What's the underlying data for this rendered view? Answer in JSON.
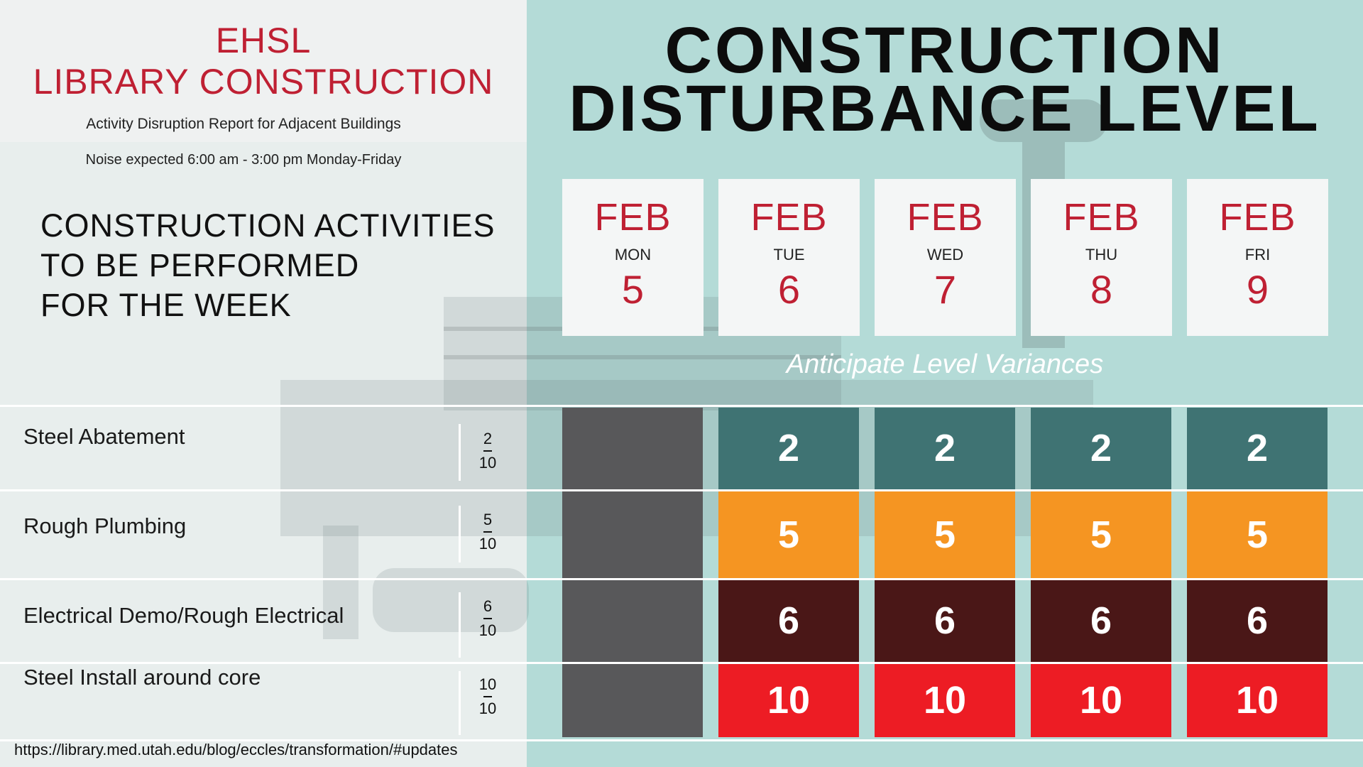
{
  "header": {
    "ehsl_line1": "EHSL",
    "ehsl_line2": "LIBRARY CONSTRUCTION",
    "report_subtitle": "Activity Disruption Report for Adjacent Buildings",
    "noise_note": "Noise expected 6:00 am - 3:00 pm Monday-Friday"
  },
  "activities_heading": {
    "line1": "CONSTRUCTION ACTIVITIES",
    "line2": "TO BE PERFORMED",
    "line3": "FOR THE WEEK"
  },
  "main_title": {
    "line1": "CONSTRUCTION",
    "line2": "DISTURBANCE LEVEL"
  },
  "dates": [
    {
      "month": "FEB",
      "dow": "MON",
      "day": "5"
    },
    {
      "month": "FEB",
      "dow": "TUE",
      "day": "6"
    },
    {
      "month": "FEB",
      "dow": "WED",
      "day": "7"
    },
    {
      "month": "FEB",
      "dow": "THU",
      "day": "8"
    },
    {
      "month": "FEB",
      "dow": "FRI",
      "day": "9"
    }
  ],
  "variance_note": "Anticipate Level Variances",
  "activities": [
    {
      "name": "Steel Abatement",
      "level_num": "2",
      "level_den": "10",
      "levels": [
        "2",
        "2",
        "2",
        "2"
      ],
      "color": "#3f7373"
    },
    {
      "name": "Rough Plumbing",
      "level_num": "5",
      "level_den": "10",
      "levels": [
        "5",
        "5",
        "5",
        "5"
      ],
      "color": "#f59522"
    },
    {
      "name": "Electrical Demo/Rough Electrical",
      "level_num": "6",
      "level_den": "10",
      "levels": [
        "6",
        "6",
        "6",
        "6"
      ],
      "color": "#4a1717"
    },
    {
      "name": "Steel Install around core",
      "level_num": "10",
      "level_den": "10",
      "levels": [
        "10",
        "10",
        "10",
        "10"
      ],
      "color": "#ed1c24"
    }
  ],
  "monday_cell_color": "#58585a",
  "footer_url": "https://library.med.utah.edu/blog/eccles/transformation/#updates"
}
